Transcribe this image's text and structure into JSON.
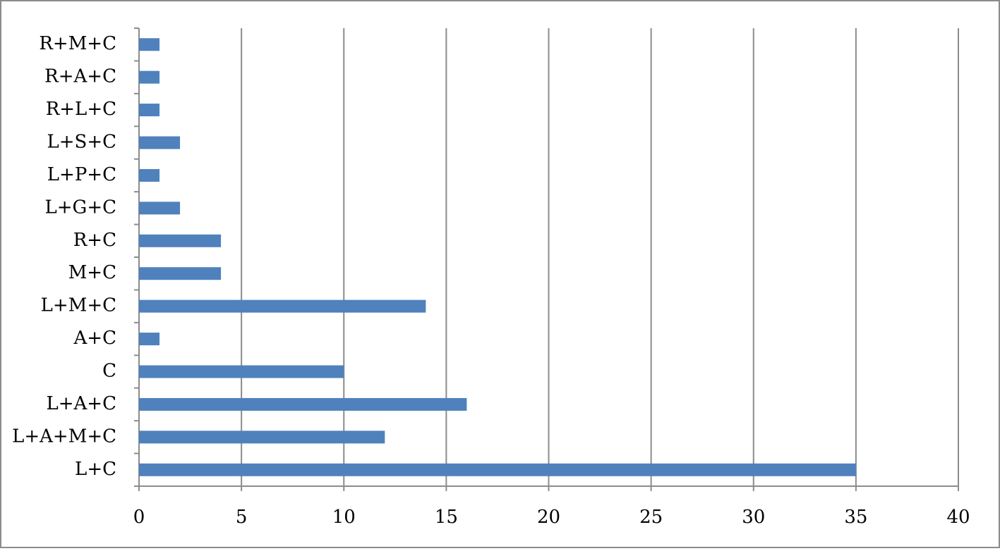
{
  "chart_data": {
    "type": "bar",
    "orientation": "horizontal",
    "categories": [
      "L+C",
      "L+A+M+C",
      "L+A+C",
      "C",
      "A+C",
      "L+M+C",
      "M+C",
      "R+C",
      "L+G+C",
      "L+P+C",
      "L+S+C",
      "R+L+C",
      "R+A+C",
      "R+M+C"
    ],
    "values": [
      35,
      12,
      16,
      10,
      1,
      14,
      4,
      4,
      2,
      1,
      2,
      1,
      1,
      1
    ],
    "color": "#4f81bd",
    "xlim": [
      0,
      40
    ],
    "xticks": [
      0,
      5,
      10,
      15,
      20,
      25,
      30,
      35,
      40
    ],
    "grid": true
  }
}
